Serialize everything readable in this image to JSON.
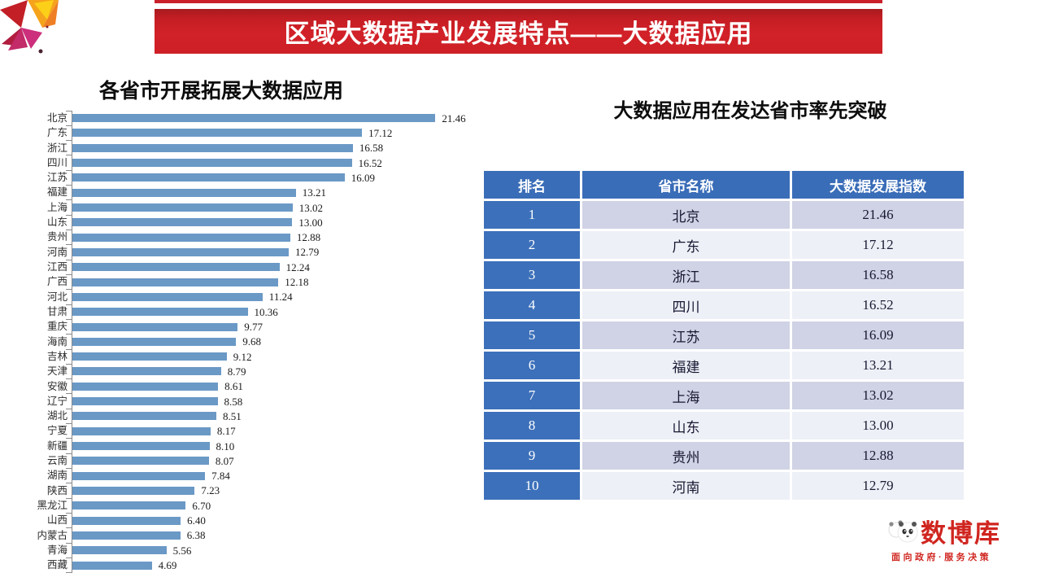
{
  "banner": {
    "title": "区域大数据产业发展特点——大数据应用"
  },
  "colors": {
    "banner_red": "#ce2026",
    "strip_red": "#c9202a"
  },
  "chart_data": {
    "type": "bar",
    "orientation": "horizontal",
    "title": "各省市开展拓展大数据应用",
    "categories": [
      "北京",
      "广东",
      "浙江",
      "四川",
      "江苏",
      "福建",
      "上海",
      "山东",
      "贵州",
      "河南",
      "江西",
      "广西",
      "河北",
      "甘肃",
      "重庆",
      "海南",
      "吉林",
      "天津",
      "安徽",
      "辽宁",
      "湖北",
      "宁夏",
      "新疆",
      "云南",
      "湖南",
      "陕西",
      "黑龙江",
      "山西",
      "内蒙古",
      "青海",
      "西藏"
    ],
    "values": [
      21.46,
      17.12,
      16.58,
      16.52,
      16.09,
      13.21,
      13.02,
      13.0,
      12.88,
      12.79,
      12.24,
      12.18,
      11.24,
      10.36,
      9.77,
      9.68,
      9.12,
      8.79,
      8.61,
      8.58,
      8.51,
      8.17,
      8.1,
      8.07,
      7.84,
      7.23,
      6.7,
      6.4,
      6.38,
      5.56,
      4.69
    ],
    "value_labels": [
      "21.46",
      "17.12",
      "16.58",
      "16.52",
      "16.09",
      "13.21",
      "13.02",
      "13.00",
      "12.88",
      "12.79",
      "12.24",
      "12.18",
      "11.24",
      "10.36",
      "9.77",
      "9.68",
      "9.12",
      "8.79",
      "8.61",
      "8.58",
      "8.51",
      "8.17",
      "8.10",
      "8.07",
      "7.84",
      "7.23",
      "6.70",
      "6.40",
      "6.38",
      "5.56",
      "4.69"
    ],
    "xlim": [
      0,
      22.5
    ],
    "bar_color": "#6a99c6",
    "axis_color": "#8a8a8a",
    "grid": false,
    "legend": false,
    "value_labels_shown": true
  },
  "section_right": {
    "title": "大数据应用在发达省市率先突破"
  },
  "table": {
    "headers": [
      "排名",
      "省市名称",
      "大数据发展指数"
    ],
    "rows": [
      [
        "1",
        "北京",
        "21.46"
      ],
      [
        "2",
        "广东",
        "17.12"
      ],
      [
        "3",
        "浙江",
        "16.58"
      ],
      [
        "4",
        "四川",
        "16.52"
      ],
      [
        "5",
        "江苏",
        "16.09"
      ],
      [
        "6",
        "福建",
        "13.21"
      ],
      [
        "7",
        "上海",
        "13.02"
      ],
      [
        "8",
        "山东",
        "13.00"
      ],
      [
        "9",
        "贵州",
        "12.88"
      ],
      [
        "10",
        "河南",
        "12.79"
      ]
    ],
    "colors": {
      "header_bg": "#3a6db8",
      "rank_bg": "#3c70ba",
      "row_odd_bg": "#d0d2e5",
      "row_even_bg": "#eef0f7",
      "header_text": "#ffffff",
      "cell_text": "#181832"
    }
  },
  "footer_logo": {
    "brand": "数博库",
    "tagline": "面向政府·服务决策",
    "color": "#d0251f"
  }
}
